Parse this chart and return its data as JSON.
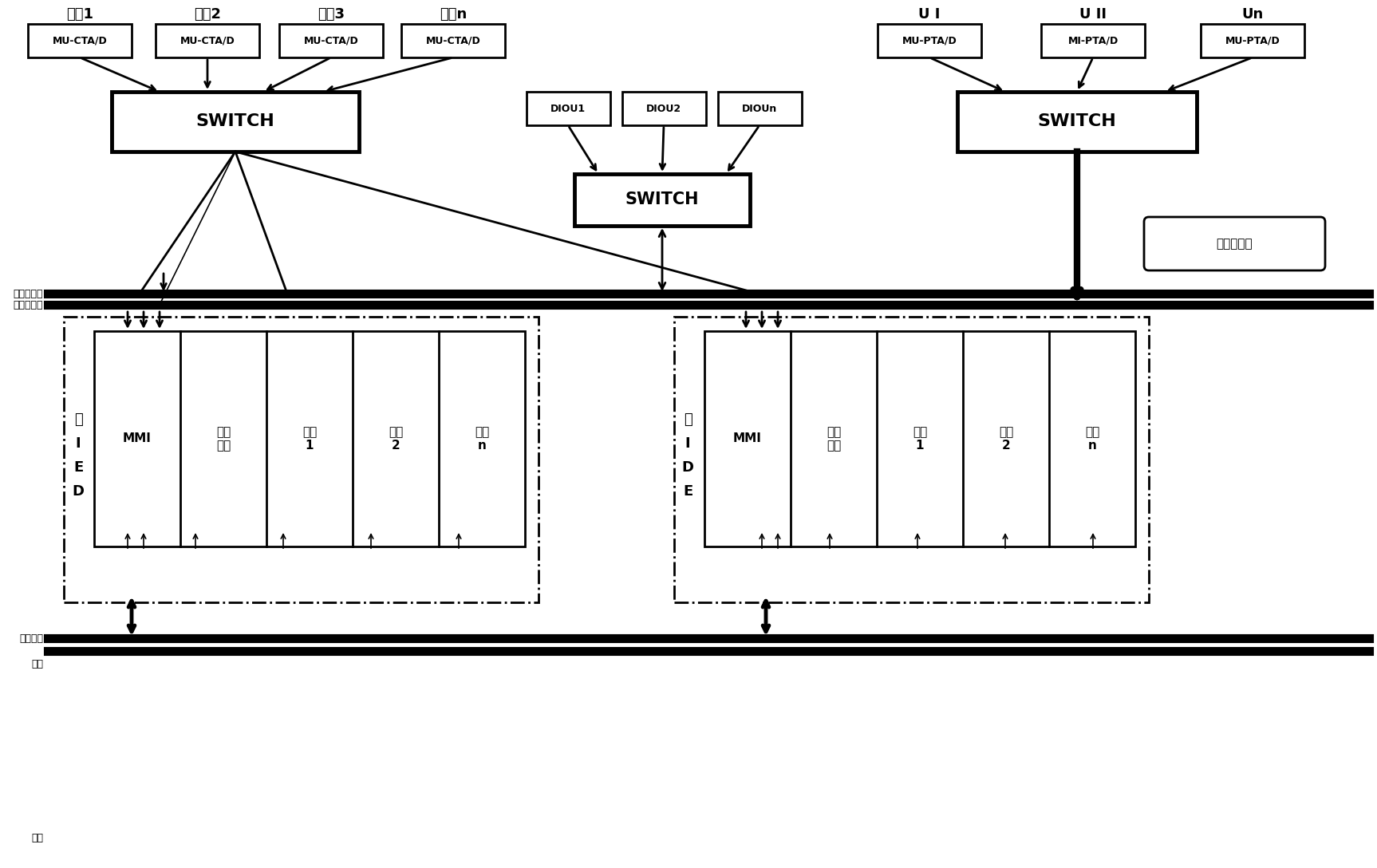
{
  "bg_color": "#ffffff",
  "fig_width": 17.26,
  "fig_height": 10.88,
  "labels": {
    "xianlu1": "线路1",
    "xianlu2": "线路2",
    "xianlu3": "线路3",
    "xianluN": "线路n",
    "UI": "U I",
    "UII": "U II",
    "Un": "Un",
    "mu_cta1": "MU-CTA/D",
    "mu_cta2": "MU-CTA/D",
    "mu_cta3": "MU-CTA/D",
    "mu_ctaN": "MU-CTA/D",
    "mu_pta1": "MU-PTA/D",
    "mu_pta2": "MI-PTA/D",
    "mu_ptaN": "MU-PTA/D",
    "diou1": "DIOU1",
    "diou2": "DIOU2",
    "diouN": "DIOUn",
    "switch_left": "SWITCH",
    "switch_center": "SWITCH",
    "switch_right": "SWITCH",
    "guocheng": "过程层网络",
    "kongzhi": "控制以太网",
    "dianya": "电压以太网",
    "zhankong": "站控层以",
    "tai": "太网",
    "zhu1": "主",
    "zhu2": "I",
    "zhu3": "E",
    "zhu4": "D",
    "bei1": "备",
    "bei2": "I",
    "bei3": "D",
    "bei4": "E",
    "mmi": "MMI",
    "muxian": "母线\n分段",
    "xianlu_1": "线路\n1",
    "xianlu_2": "线路\n2",
    "xianlu_n": "线路\nn"
  }
}
